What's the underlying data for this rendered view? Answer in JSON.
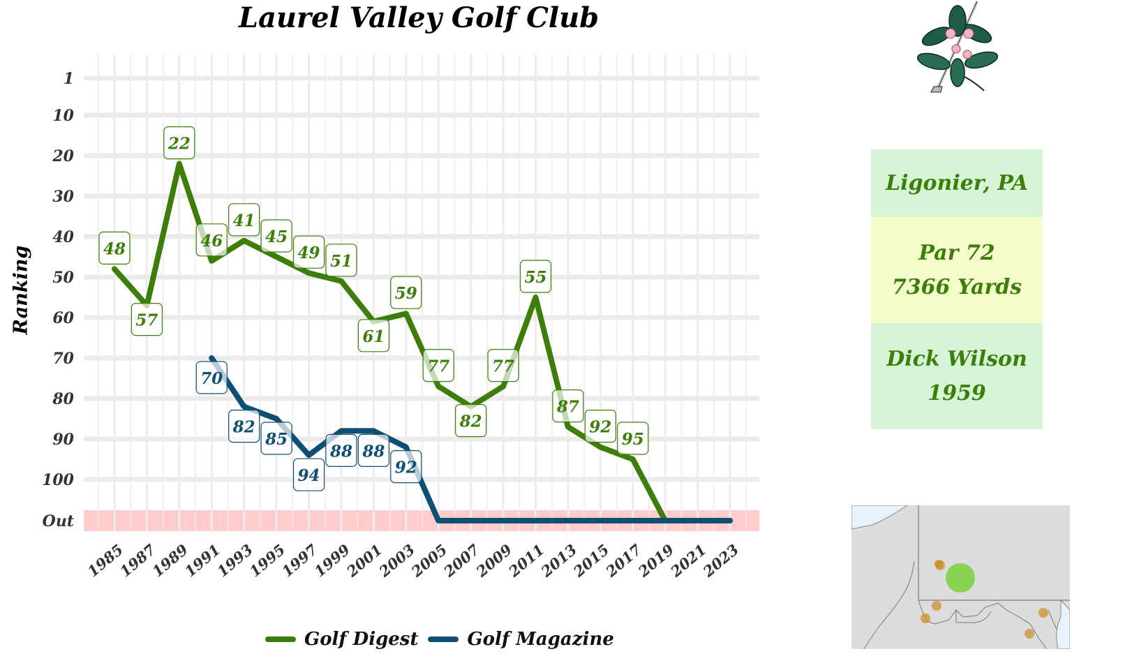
{
  "title": "Laurel Valley Golf Club",
  "ylabel": "Ranking",
  "colors": {
    "golf_digest": "#3d7e0a",
    "golf_magazine": "#0f4f73",
    "out_band": "#ffcccc",
    "grid": "#ebebeb"
  },
  "info": {
    "location": "Ligonier, PA",
    "par": "Par 72",
    "yards": "7366 Yards",
    "architect": "Dick Wilson",
    "year": "1959",
    "colors": {
      "location_bg": "#d6f5d6",
      "par_bg": "#f5fccb",
      "architect_bg": "#d6f5d6"
    }
  },
  "chart_data": {
    "type": "line",
    "title": "Laurel Valley Golf Club",
    "xlabel": "",
    "ylabel": "Ranking",
    "y_tick_labels": [
      "1",
      "10",
      "20",
      "30",
      "40",
      "50",
      "60",
      "70",
      "80",
      "90",
      "100",
      "Out"
    ],
    "y_tick_values": [
      1,
      10,
      20,
      30,
      40,
      50,
      60,
      70,
      80,
      90,
      100,
      "Out"
    ],
    "y_reversed": true,
    "x_tick_labels": [
      "1985",
      "1987",
      "1989",
      "1991",
      "1993",
      "1995",
      "1997",
      "1999",
      "2001",
      "2003",
      "2005",
      "2007",
      "2009",
      "2011",
      "2013",
      "2015",
      "2017",
      "2019",
      "2021",
      "2023"
    ],
    "legend_position": "bottom",
    "grid": true,
    "series": [
      {
        "name": "Golf Digest",
        "color": "#3d7e0a",
        "points": [
          {
            "x": 1985,
            "y": 48,
            "label": "48"
          },
          {
            "x": 1987,
            "y": 57,
            "label": "57"
          },
          {
            "x": 1989,
            "y": 22,
            "label": "22"
          },
          {
            "x": 1991,
            "y": 46,
            "label": "46"
          },
          {
            "x": 1993,
            "y": 41,
            "label": "41"
          },
          {
            "x": 1995,
            "y": 45,
            "label": "45"
          },
          {
            "x": 1997,
            "y": 49,
            "label": "49"
          },
          {
            "x": 1999,
            "y": 51,
            "label": "51"
          },
          {
            "x": 2001,
            "y": 61,
            "label": "61"
          },
          {
            "x": 2003,
            "y": 59,
            "label": "59"
          },
          {
            "x": 2005,
            "y": 77,
            "label": "77"
          },
          {
            "x": 2007,
            "y": 82,
            "label": "82"
          },
          {
            "x": 2009,
            "y": 77,
            "label": "77"
          },
          {
            "x": 2011,
            "y": 55,
            "label": "55"
          },
          {
            "x": 2013,
            "y": 87,
            "label": "87"
          },
          {
            "x": 2015,
            "y": 92,
            "label": "92"
          },
          {
            "x": 2017,
            "y": 95,
            "label": "95"
          },
          {
            "x": 2019,
            "y": "Out",
            "label": ""
          },
          {
            "x": 2021,
            "y": "Out",
            "label": ""
          },
          {
            "x": 2023,
            "y": "Out",
            "label": ""
          }
        ]
      },
      {
        "name": "Golf Magazine",
        "color": "#0f4f73",
        "points": [
          {
            "x": 1991,
            "y": 70,
            "label": "70"
          },
          {
            "x": 1993,
            "y": 82,
            "label": "82"
          },
          {
            "x": 1995,
            "y": 85,
            "label": "85"
          },
          {
            "x": 1997,
            "y": 94,
            "label": "94"
          },
          {
            "x": 1999,
            "y": 88,
            "label": "88"
          },
          {
            "x": 2001,
            "y": 88,
            "label": "88"
          },
          {
            "x": 2003,
            "y": 92,
            "label": "92"
          },
          {
            "x": 2005,
            "y": "Out",
            "label": ""
          },
          {
            "x": 2007,
            "y": "Out",
            "label": ""
          },
          {
            "x": 2009,
            "y": "Out",
            "label": ""
          },
          {
            "x": 2011,
            "y": "Out",
            "label": ""
          },
          {
            "x": 2013,
            "y": "Out",
            "label": ""
          },
          {
            "x": 2015,
            "y": "Out",
            "label": ""
          },
          {
            "x": 2017,
            "y": "Out",
            "label": ""
          },
          {
            "x": 2019,
            "y": "Out",
            "label": ""
          },
          {
            "x": 2021,
            "y": "Out",
            "label": ""
          },
          {
            "x": 2023,
            "y": "Out",
            "label": ""
          }
        ]
      }
    ]
  }
}
